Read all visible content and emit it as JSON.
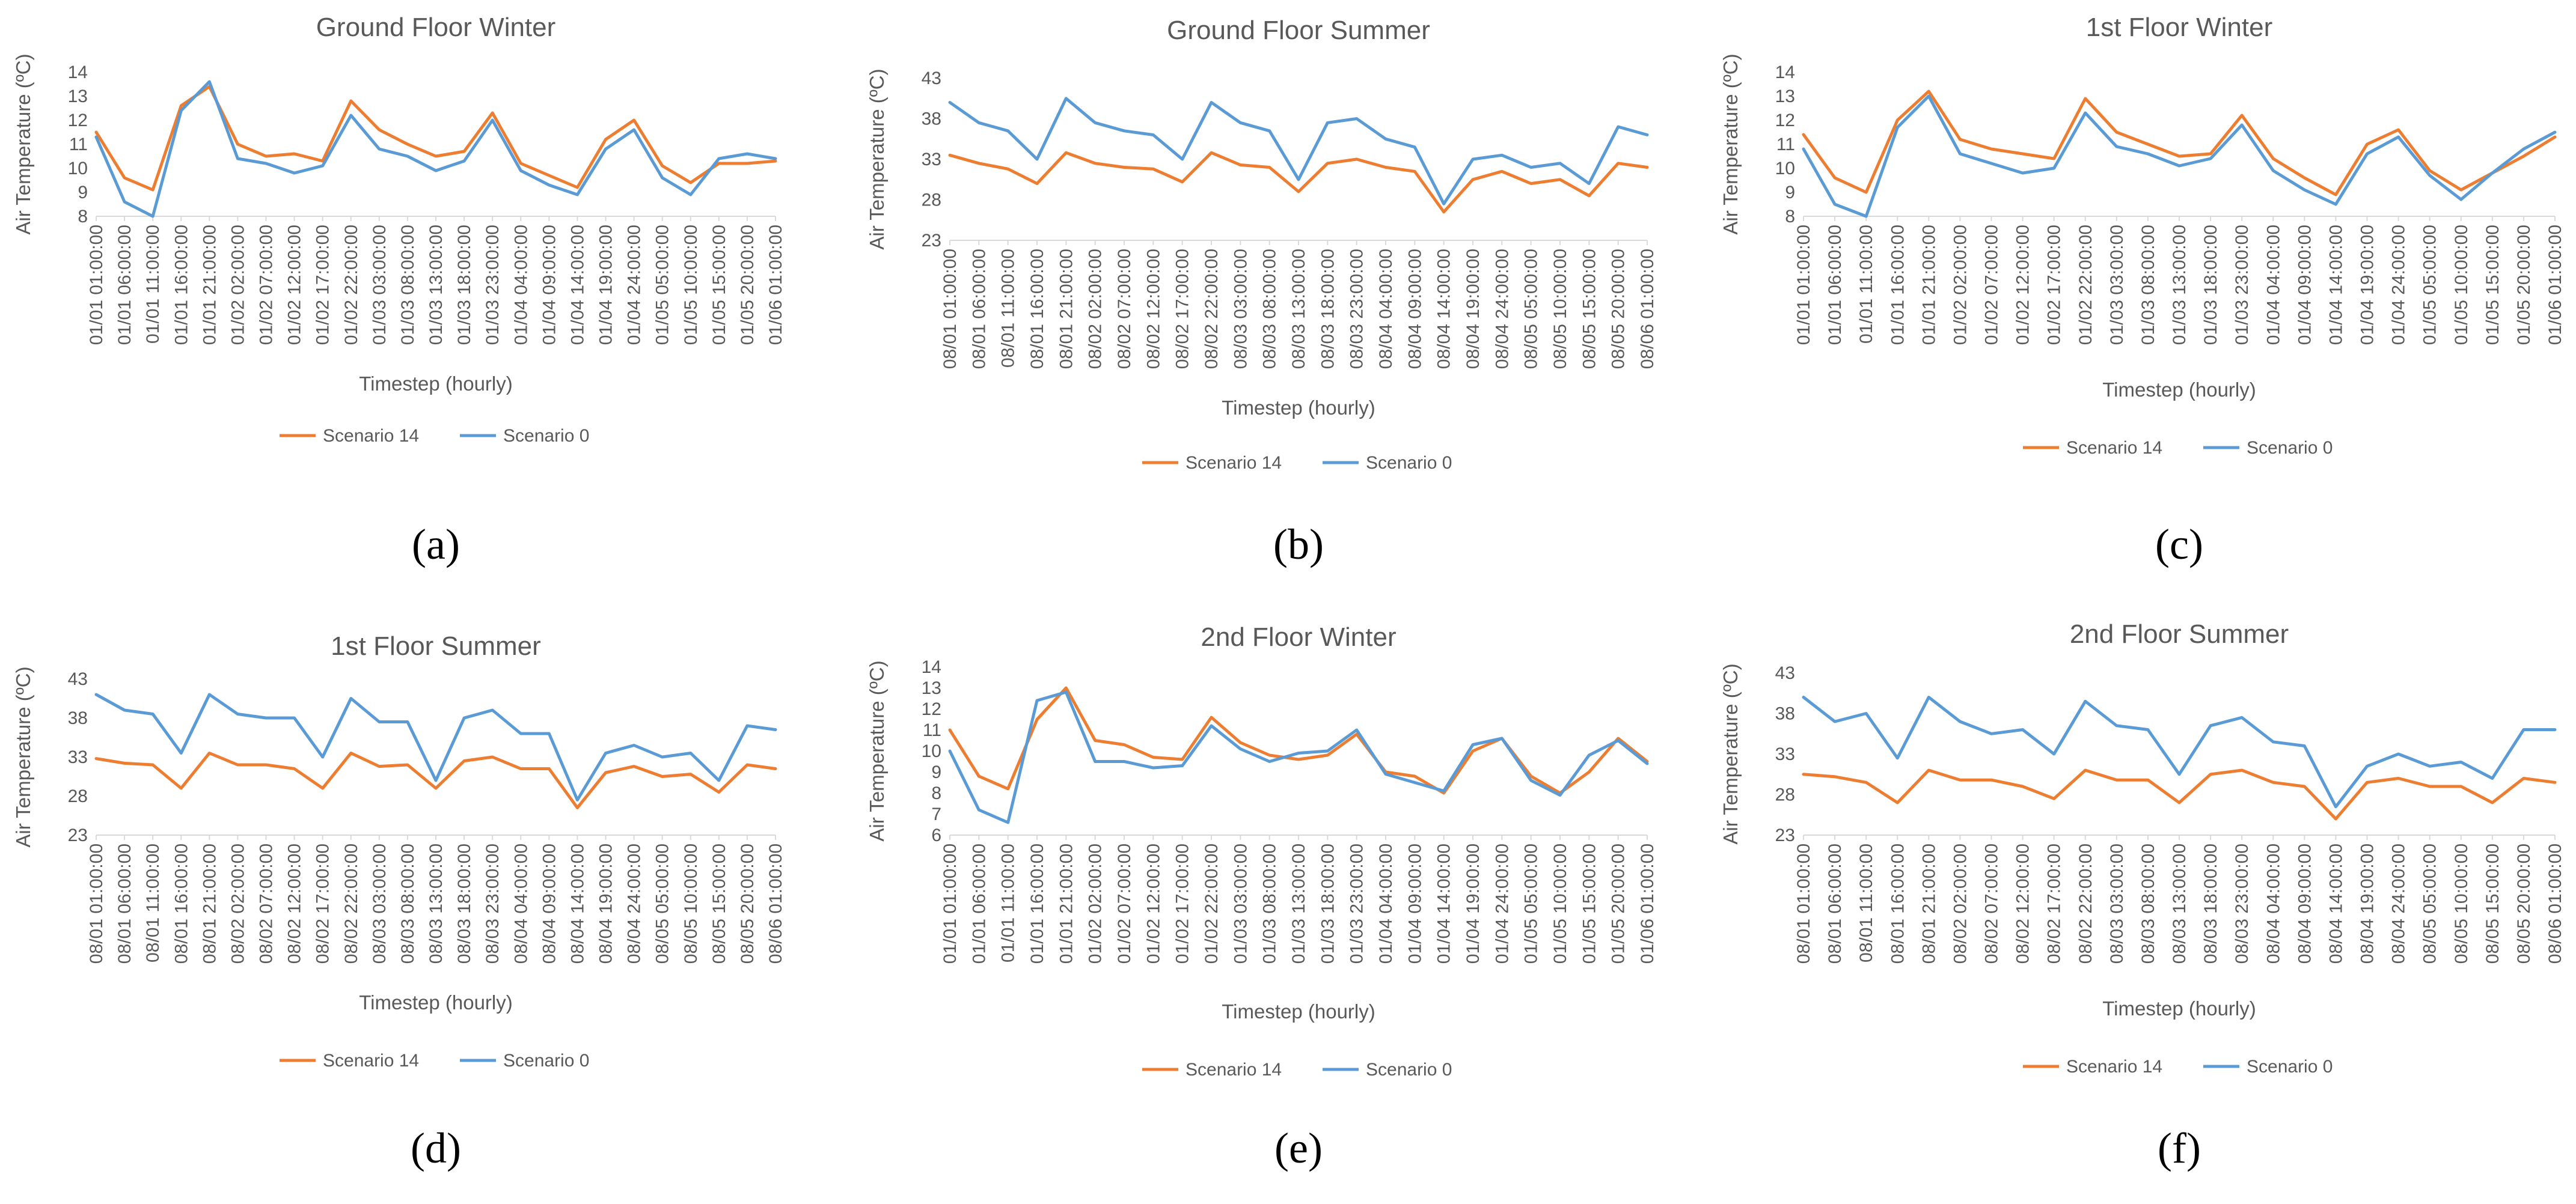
{
  "colors": {
    "scenario14": "#ED7D31",
    "scenario0": "#5B9BD5",
    "text": "#595959",
    "axis": "#d9d9d9"
  },
  "chart_data": [
    {
      "id": "a",
      "type": "line",
      "title": "Ground Floor Winter",
      "sublabel": "(a)",
      "xlabel": "Timestep (hourly)",
      "ylabel": "Air Temperature (ºC)",
      "ylim": [
        8,
        14
      ],
      "yticks": [
        "8",
        "9",
        "10",
        "11",
        "12",
        "13",
        "14"
      ],
      "categories": [
        "01/01 01:00:00",
        "01/01 06:00:00",
        "01/01 11:00:00",
        "01/01 16:00:00",
        "01/01 21:00:00",
        "01/02 02:00:00",
        "01/02 07:00:00",
        "01/02 12:00:00",
        "01/02 17:00:00",
        "01/02 22:00:00",
        "01/03 03:00:00",
        "01/03 08:00:00",
        "01/03 13:00:00",
        "01/03 18:00:00",
        "01/03 23:00:00",
        "01/04 04:00:00",
        "01/04 09:00:00",
        "01/04 14:00:00",
        "01/04 19:00:00",
        "01/04 24:00:00",
        "01/05 05:00:00",
        "01/05 10:00:00",
        "01/05 15:00:00",
        "01/05 20:00:00",
        "01/06 01:00:00"
      ],
      "series": [
        {
          "name": "Scenario 14",
          "values": [
            11.5,
            9.6,
            9.1,
            12.6,
            13.4,
            11.0,
            10.5,
            10.6,
            10.3,
            12.8,
            11.6,
            11.0,
            10.5,
            10.7,
            12.3,
            10.2,
            9.7,
            9.2,
            11.2,
            12.0,
            10.1,
            9.4,
            10.2,
            10.2,
            10.3
          ]
        },
        {
          "name": "Scenario 0",
          "values": [
            11.3,
            8.6,
            8.0,
            12.4,
            13.6,
            10.4,
            10.2,
            9.8,
            10.1,
            12.2,
            10.8,
            10.5,
            9.9,
            10.3,
            12.0,
            9.9,
            9.3,
            8.9,
            10.8,
            11.6,
            9.6,
            8.9,
            10.4,
            10.6,
            10.4
          ]
        }
      ]
    },
    {
      "id": "b",
      "type": "line",
      "title": "Ground Floor Summer",
      "sublabel": "(b)",
      "xlabel": "Timestep (hourly)",
      "ylabel": "Air Temperature (ºC)",
      "ylim": [
        23,
        43
      ],
      "yticks": [
        "23",
        "28",
        "33",
        "38",
        "43"
      ],
      "categories": [
        "08/01 01:00:00",
        "08/01 06:00:00",
        "08/01 11:00:00",
        "08/01 16:00:00",
        "08/01 21:00:00",
        "08/02 02:00:00",
        "08/02 07:00:00",
        "08/02 12:00:00",
        "08/02 17:00:00",
        "08/02 22:00:00",
        "08/03 03:00:00",
        "08/03 08:00:00",
        "08/03 13:00:00",
        "08/03 18:00:00",
        "08/03 23:00:00",
        "08/04 04:00:00",
        "08/04 09:00:00",
        "08/04 14:00:00",
        "08/04 19:00:00",
        "08/04 24:00:00",
        "08/05 05:00:00",
        "08/05 10:00:00",
        "08/05 15:00:00",
        "08/05 20:00:00",
        "08/06 01:00:00"
      ],
      "series": [
        {
          "name": "Scenario 14",
          "values": [
            33.5,
            32.5,
            31.8,
            30.0,
            33.8,
            32.5,
            32.0,
            31.8,
            30.2,
            33.8,
            32.3,
            32.0,
            29.0,
            32.5,
            33.0,
            32.0,
            31.5,
            26.5,
            30.5,
            31.5,
            30.0,
            30.5,
            28.5,
            32.5,
            32.0
          ]
        },
        {
          "name": "Scenario 0",
          "values": [
            40.0,
            37.5,
            36.5,
            33.0,
            40.5,
            37.5,
            36.5,
            36.0,
            33.0,
            40.0,
            37.5,
            36.5,
            30.5,
            37.5,
            38.0,
            35.5,
            34.5,
            27.5,
            33.0,
            33.5,
            32.0,
            32.5,
            30.0,
            37.0,
            36.0
          ]
        }
      ]
    },
    {
      "id": "c",
      "type": "line",
      "title": "1st Floor Winter",
      "sublabel": "(c)",
      "xlabel": "Timestep (hourly)",
      "ylabel": "Air Temperature (ºC)",
      "ylim": [
        8,
        14
      ],
      "yticks": [
        "8",
        "9",
        "10",
        "11",
        "12",
        "13",
        "14"
      ],
      "categories": [
        "01/01 01:00:00",
        "01/01 06:00:00",
        "01/01 11:00:00",
        "01/01 16:00:00",
        "01/01 21:00:00",
        "01/02 02:00:00",
        "01/02 07:00:00",
        "01/02 12:00:00",
        "01/02 17:00:00",
        "01/02 22:00:00",
        "01/03 03:00:00",
        "01/03 08:00:00",
        "01/03 13:00:00",
        "01/03 18:00:00",
        "01/03 23:00:00",
        "01/04 04:00:00",
        "01/04 09:00:00",
        "01/04 14:00:00",
        "01/04 19:00:00",
        "01/04 24:00:00",
        "01/05 05:00:00",
        "01/05 10:00:00",
        "01/05 15:00:00",
        "01/05 20:00:00",
        "01/06 01:00:00"
      ],
      "series": [
        {
          "name": "Scenario 14",
          "values": [
            11.4,
            9.6,
            9.0,
            12.0,
            13.2,
            11.2,
            10.8,
            10.6,
            10.4,
            12.9,
            11.5,
            11.0,
            10.5,
            10.6,
            12.2,
            10.4,
            9.6,
            8.9,
            11.0,
            11.6,
            9.9,
            9.1,
            9.8,
            10.5,
            11.3
          ]
        },
        {
          "name": "Scenario 0",
          "values": [
            10.8,
            8.5,
            8.0,
            11.7,
            13.0,
            10.6,
            10.2,
            9.8,
            10.0,
            12.3,
            10.9,
            10.6,
            10.1,
            10.4,
            11.8,
            9.9,
            9.1,
            8.5,
            10.6,
            11.3,
            9.7,
            8.7,
            9.8,
            10.8,
            11.5
          ]
        }
      ]
    },
    {
      "id": "d",
      "type": "line",
      "title": "1st Floor Summer",
      "sublabel": "(d)",
      "xlabel": "Timestep (hourly)",
      "ylabel": "Air Temperature (ºC)",
      "ylim": [
        23,
        43
      ],
      "yticks": [
        "23",
        "28",
        "33",
        "38",
        "43"
      ],
      "categories": [
        "08/01 01:00:00",
        "08/01 06:00:00",
        "08/01 11:00:00",
        "08/01 16:00:00",
        "08/01 21:00:00",
        "08/02 02:00:00",
        "08/02 07:00:00",
        "08/02 12:00:00",
        "08/02 17:00:00",
        "08/02 22:00:00",
        "08/03 03:00:00",
        "08/03 08:00:00",
        "08/03 13:00:00",
        "08/03 18:00:00",
        "08/03 23:00:00",
        "08/04 04:00:00",
        "08/04 09:00:00",
        "08/04 14:00:00",
        "08/04 19:00:00",
        "08/04 24:00:00",
        "08/05 05:00:00",
        "08/05 10:00:00",
        "08/05 15:00:00",
        "08/05 20:00:00",
        "08/06 01:00:00"
      ],
      "series": [
        {
          "name": "Scenario 14",
          "values": [
            32.8,
            32.2,
            32.0,
            29.0,
            33.5,
            32.0,
            32.0,
            31.5,
            29.0,
            33.5,
            31.8,
            32.0,
            29.0,
            32.5,
            33.0,
            31.5,
            31.5,
            26.5,
            31.0,
            31.8,
            30.5,
            30.8,
            28.5,
            32.0,
            31.5
          ]
        },
        {
          "name": "Scenario 0",
          "values": [
            41.0,
            39.0,
            38.5,
            33.5,
            41.0,
            38.5,
            38.0,
            38.0,
            33.0,
            40.5,
            37.5,
            37.5,
            30.0,
            38.0,
            39.0,
            36.0,
            36.0,
            27.5,
            33.5,
            34.5,
            33.0,
            33.5,
            30.0,
            37.0,
            36.5
          ]
        }
      ]
    },
    {
      "id": "e",
      "type": "line",
      "title": "2nd Floor Winter",
      "sublabel": "(e)",
      "xlabel": "Timestep (hourly)",
      "ylabel": "Air Temperature (ºC)",
      "ylim": [
        6,
        14
      ],
      "yticks": [
        "6",
        "7",
        "8",
        "9",
        "10",
        "11",
        "12",
        "13",
        "14"
      ],
      "categories": [
        "01/01 01:00:00",
        "01/01 06:00:00",
        "01/01 11:00:00",
        "01/01 16:00:00",
        "01/01 21:00:00",
        "01/02 02:00:00",
        "01/02 07:00:00",
        "01/02 12:00:00",
        "01/02 17:00:00",
        "01/02 22:00:00",
        "01/03 03:00:00",
        "01/03 08:00:00",
        "01/03 13:00:00",
        "01/03 18:00:00",
        "01/03 23:00:00",
        "01/04 04:00:00",
        "01/04 09:00:00",
        "01/04 14:00:00",
        "01/04 19:00:00",
        "01/04 24:00:00",
        "01/05 05:00:00",
        "01/05 10:00:00",
        "01/05 15:00:00",
        "01/05 20:00:00",
        "01/06 01:00:00"
      ],
      "series": [
        {
          "name": "Scenario 14",
          "values": [
            11.0,
            8.8,
            8.2,
            11.5,
            13.0,
            10.5,
            10.3,
            9.7,
            9.6,
            11.6,
            10.4,
            9.8,
            9.6,
            9.8,
            10.8,
            9.0,
            8.8,
            8.0,
            10.0,
            10.6,
            8.8,
            8.0,
            9.0,
            10.6,
            9.5
          ]
        },
        {
          "name": "Scenario 0",
          "values": [
            10.0,
            7.2,
            6.6,
            12.4,
            12.8,
            9.5,
            9.5,
            9.2,
            9.3,
            11.2,
            10.1,
            9.5,
            9.9,
            10.0,
            11.0,
            8.9,
            8.5,
            8.1,
            10.3,
            10.6,
            8.6,
            7.9,
            9.8,
            10.5,
            9.4
          ]
        }
      ]
    },
    {
      "id": "f",
      "type": "line",
      "title": "2nd Floor Summer",
      "sublabel": "(f)",
      "xlabel": "Timestep (hourly)",
      "ylabel": "Air Temperature (ºC)",
      "ylim": [
        23,
        43
      ],
      "yticks": [
        "23",
        "28",
        "33",
        "38",
        "43"
      ],
      "categories": [
        "08/01 01:00:00",
        "08/01 06:00:00",
        "08/01 11:00:00",
        "08/01 16:00:00",
        "08/01 21:00:00",
        "08/02 02:00:00",
        "08/02 07:00:00",
        "08/02 12:00:00",
        "08/02 17:00:00",
        "08/02 22:00:00",
        "08/03 03:00:00",
        "08/03 08:00:00",
        "08/03 13:00:00",
        "08/03 18:00:00",
        "08/03 23:00:00",
        "08/04 04:00:00",
        "08/04 09:00:00",
        "08/04 14:00:00",
        "08/04 19:00:00",
        "08/04 24:00:00",
        "08/05 05:00:00",
        "08/05 10:00:00",
        "08/05 15:00:00",
        "08/05 20:00:00",
        "08/06 01:00:00"
      ],
      "series": [
        {
          "name": "Scenario 14",
          "values": [
            30.5,
            30.2,
            29.5,
            27.0,
            31.0,
            29.8,
            29.8,
            29.0,
            27.5,
            31.0,
            29.8,
            29.8,
            27.0,
            30.5,
            31.0,
            29.5,
            29.0,
            25.0,
            29.5,
            30.0,
            29.0,
            29.0,
            27.0,
            30.0,
            29.5
          ]
        },
        {
          "name": "Scenario 0",
          "values": [
            40.0,
            37.0,
            38.0,
            32.5,
            40.0,
            37.0,
            35.5,
            36.0,
            33.0,
            39.5,
            36.5,
            36.0,
            30.5,
            36.5,
            37.5,
            34.5,
            34.0,
            26.5,
            31.5,
            33.0,
            31.5,
            32.0,
            30.0,
            36.0,
            36.0
          ]
        }
      ]
    }
  ]
}
